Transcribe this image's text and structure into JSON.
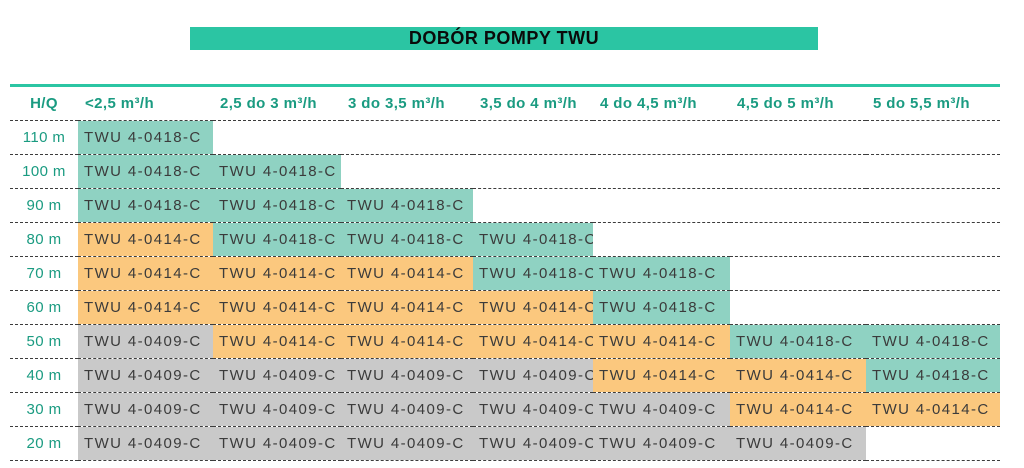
{
  "title": "DOBÓR POMPY TWU",
  "table": {
    "corner_label": "H/Q",
    "columns": [
      "<2,5 m³/h",
      "2,5 do 3 m³/h",
      "3 do 3,5 m³/h",
      "3,5 do 4 m³/h",
      "4 do 4,5 m³/h",
      "4,5 do 5 m³/h",
      "5 do 5,5 m³/h"
    ],
    "rows": [
      {
        "label": "110 m",
        "cells": [
          {
            "model": "TWU 4-0418-C",
            "tone": "teal"
          },
          null,
          null,
          null,
          null,
          null,
          null
        ]
      },
      {
        "label": "100 m",
        "cells": [
          {
            "model": "TWU 4-0418-C",
            "tone": "teal"
          },
          {
            "model": "TWU 4-0418-C",
            "tone": "teal"
          },
          null,
          null,
          null,
          null,
          null
        ]
      },
      {
        "label": "90 m",
        "cells": [
          {
            "model": "TWU 4-0418-C",
            "tone": "teal"
          },
          {
            "model": "TWU 4-0418-C",
            "tone": "teal"
          },
          {
            "model": "TWU 4-0418-C",
            "tone": "teal"
          },
          null,
          null,
          null,
          null
        ]
      },
      {
        "label": "80 m",
        "cells": [
          {
            "model": "TWU 4-0414-C",
            "tone": "orange"
          },
          {
            "model": "TWU 4-0418-C",
            "tone": "teal"
          },
          {
            "model": "TWU 4-0418-C",
            "tone": "teal"
          },
          {
            "model": "TWU 4-0418-C",
            "tone": "teal"
          },
          null,
          null,
          null
        ]
      },
      {
        "label": "70 m",
        "cells": [
          {
            "model": "TWU 4-0414-C",
            "tone": "orange"
          },
          {
            "model": "TWU 4-0414-C",
            "tone": "orange"
          },
          {
            "model": "TWU 4-0414-C",
            "tone": "orange"
          },
          {
            "model": "TWU 4-0418-C",
            "tone": "teal"
          },
          {
            "model": "TWU 4-0418-C",
            "tone": "teal"
          },
          null,
          null
        ]
      },
      {
        "label": "60 m",
        "cells": [
          {
            "model": "TWU 4-0414-C",
            "tone": "orange"
          },
          {
            "model": "TWU 4-0414-C",
            "tone": "orange"
          },
          {
            "model": "TWU 4-0414-C",
            "tone": "orange"
          },
          {
            "model": "TWU 4-0414-C",
            "tone": "orange"
          },
          {
            "model": "TWU 4-0418-C",
            "tone": "teal"
          },
          null,
          null
        ]
      },
      {
        "label": "50 m",
        "cells": [
          {
            "model": "TWU 4-0409-C",
            "tone": "gray"
          },
          {
            "model": "TWU 4-0414-C",
            "tone": "orange"
          },
          {
            "model": "TWU 4-0414-C",
            "tone": "orange"
          },
          {
            "model": "TWU 4-0414-C",
            "tone": "orange"
          },
          {
            "model": "TWU 4-0414-C",
            "tone": "orange"
          },
          {
            "model": "TWU 4-0418-C",
            "tone": "teal"
          },
          {
            "model": "TWU 4-0418-C",
            "tone": "teal"
          }
        ]
      },
      {
        "label": "40 m",
        "cells": [
          {
            "model": "TWU 4-0409-C",
            "tone": "gray"
          },
          {
            "model": "TWU 4-0409-C",
            "tone": "gray"
          },
          {
            "model": "TWU 4-0409-C",
            "tone": "gray"
          },
          {
            "model": "TWU 4-0409-C",
            "tone": "gray"
          },
          {
            "model": "TWU 4-0414-C",
            "tone": "orange"
          },
          {
            "model": "TWU 4-0414-C",
            "tone": "orange"
          },
          {
            "model": "TWU 4-0418-C",
            "tone": "teal"
          }
        ]
      },
      {
        "label": "30 m",
        "cells": [
          {
            "model": "TWU 4-0409-C",
            "tone": "gray"
          },
          {
            "model": "TWU 4-0409-C",
            "tone": "gray"
          },
          {
            "model": "TWU 4-0409-C",
            "tone": "gray"
          },
          {
            "model": "TWU 4-0409-C",
            "tone": "gray"
          },
          {
            "model": "TWU 4-0409-C",
            "tone": "gray"
          },
          {
            "model": "TWU 4-0414-C",
            "tone": "orange"
          },
          {
            "model": "TWU 4-0414-C",
            "tone": "orange"
          }
        ]
      },
      {
        "label": "20 m",
        "cells": [
          {
            "model": "TWU 4-0409-C",
            "tone": "gray"
          },
          {
            "model": "TWU 4-0409-C",
            "tone": "gray"
          },
          {
            "model": "TWU 4-0409-C",
            "tone": "gray"
          },
          {
            "model": "TWU 4-0409-C",
            "tone": "gray"
          },
          {
            "model": "TWU 4-0409-C",
            "tone": "gray"
          },
          {
            "model": "TWU 4-0409-C",
            "tone": "gray"
          },
          null
        ]
      }
    ]
  },
  "colors": {
    "accent_teal": "#2BC5A3",
    "label_teal": "#1A9B81",
    "cell_teal": "#8FD2C2",
    "cell_orange": "#FBC87E",
    "cell_gray": "#C9C9C9",
    "cell_text": "#3B3B3B",
    "divider": "#3C3C3C",
    "title_text": "#0A0A0A"
  }
}
